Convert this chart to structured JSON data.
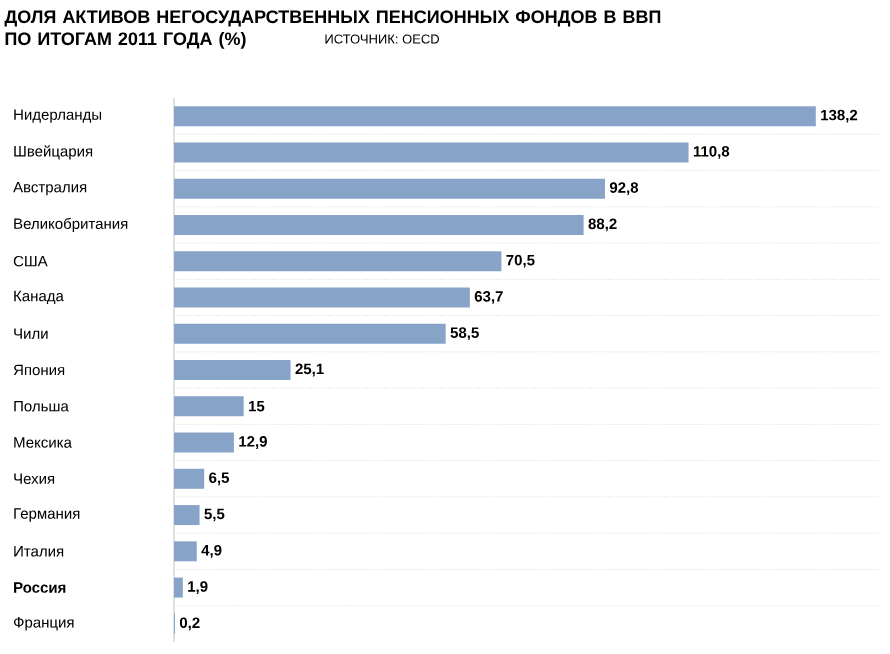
{
  "chart_data": {
    "type": "bar",
    "orientation": "horizontal",
    "title": "ДОЛЯ АКТИВОВ НЕГОСУДАРСТВЕННЫХ ПЕНСИОННЫХ ФОНДОВ В ВВП ПО ИТОГАМ 2011 ГОДА (%)",
    "annotations": [
      "ИСТОЧНИК: OECD"
    ],
    "categories": [
      "Нидерланды",
      "Швейцария",
      "Австралия",
      "Великобритания",
      "США",
      "Канада",
      "Чили",
      "Япония",
      "Польша",
      "Мексика",
      "Чехия",
      "Германия",
      "Италия",
      "**Россия**",
      "Франция"
    ],
    "values": [
      138.2,
      110.8,
      92.8,
      88.2,
      70.5,
      63.7,
      58.5,
      25.1,
      15,
      12.9,
      6.5,
      5.5,
      4.9,
      1.9,
      0.2
    ],
    "value_labels": [
      "138,2",
      "110,8",
      "92,8",
      "88,2",
      "70,5",
      "63,7",
      "58,5",
      "25,1",
      "15",
      "12,9",
      "6,5",
      "5,5",
      "4,9",
      "1,9",
      "0,2"
    ],
    "color": "#87a3c8",
    "grid": "y"
  }
}
